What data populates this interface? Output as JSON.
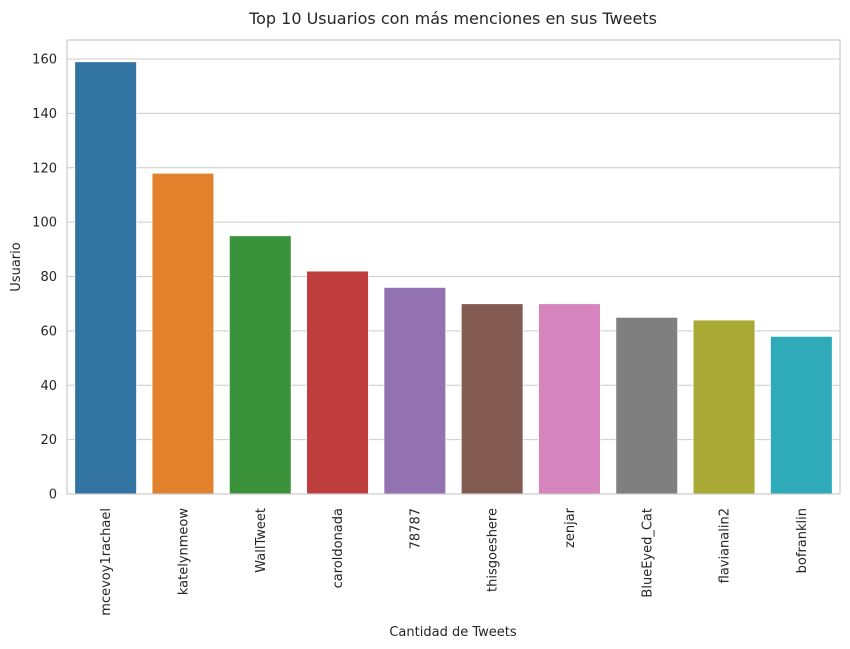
{
  "chart_data": {
    "type": "bar",
    "title": "Top 10 Usuarios con más menciones en sus Tweets",
    "xlabel": "Cantidad de Tweets",
    "ylabel": "Usuario",
    "categories": [
      "mcevoy1rachael",
      "katelynmeow",
      "WallTweet",
      "caroldonada",
      "78787",
      "thisgoeshere",
      "zenjar",
      "BlueEyed_Cat",
      "flavianalin2",
      "bofranklin"
    ],
    "values": [
      159,
      118,
      95,
      82,
      76,
      70,
      70,
      65,
      64,
      58
    ],
    "colors": [
      "#3274a1",
      "#e1812c",
      "#3a923a",
      "#c03d3e",
      "#9372b2",
      "#845b53",
      "#d684bd",
      "#7f7f7f",
      "#a9aa35",
      "#2eaab8"
    ],
    "ylim": [
      0,
      167
    ],
    "yticks": [
      0,
      20,
      40,
      60,
      80,
      100,
      120,
      140,
      160
    ],
    "grid": "horizontal",
    "legend": "none"
  }
}
